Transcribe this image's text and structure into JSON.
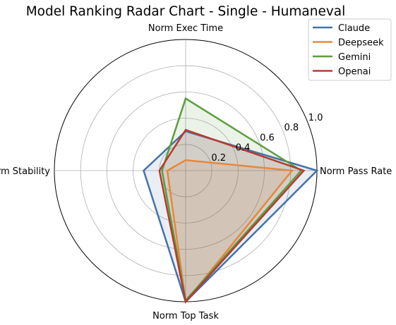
{
  "chart_data": {
    "type": "radar",
    "title": "Model Ranking Radar Chart - Single - Humaneval",
    "axes": [
      "Norm Pass Rate",
      "Norm Exec Time",
      "Norm Stability",
      "Norm Top Task"
    ],
    "rlim": [
      0,
      1.0
    ],
    "rticks": [
      "0.2",
      "0.4",
      "0.6",
      "0.8",
      "1.0"
    ],
    "rtick_values": [
      0.2,
      0.4,
      0.6,
      0.8,
      1.0
    ],
    "grid": true,
    "legend_position": "top-right",
    "series": [
      {
        "name": "Claude",
        "color": "#4472a8",
        "values": [
          1.0,
          0.3,
          0.32,
          1.0
        ]
      },
      {
        "name": "Deepseek",
        "color": "#e8873a",
        "values": [
          0.81,
          0.08,
          0.14,
          1.0
        ]
      },
      {
        "name": "Gemini",
        "color": "#5a9e3e",
        "values": [
          0.88,
          0.55,
          0.18,
          0.99
        ]
      },
      {
        "name": "Openai",
        "color": "#b83a30",
        "values": [
          0.9,
          0.31,
          0.2,
          1.0
        ]
      }
    ]
  }
}
